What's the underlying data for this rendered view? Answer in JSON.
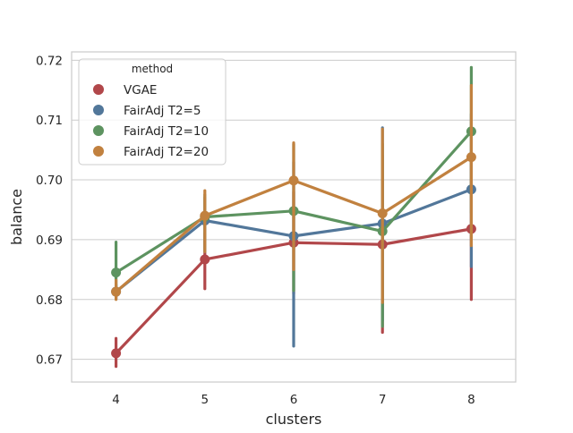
{
  "chart_data": {
    "type": "line",
    "xlabel": "clusters",
    "ylabel": "balance",
    "categories": [
      "4",
      "5",
      "6",
      "7",
      "8"
    ],
    "ylim": [
      0.6662,
      0.7214
    ],
    "yticks": [
      0.67,
      0.68,
      0.69,
      0.7,
      0.71,
      0.72
    ],
    "ytick_labels": [
      "0.67",
      "0.68",
      "0.69",
      "0.70",
      "0.71",
      "0.72"
    ],
    "grid": true,
    "legend": {
      "title": "method",
      "placement": "top-left"
    },
    "series": [
      {
        "name": "VGAE",
        "color": "#b1474a",
        "values": [
          0.671,
          0.6867,
          0.6895,
          0.6892,
          0.6918
        ],
        "ci_low": [
          0.6688,
          0.6818,
          0.681,
          0.6745,
          0.68
        ],
        "ci_high": [
          0.6735,
          0.691,
          0.698,
          0.704,
          0.7035
        ]
      },
      {
        "name": "FairAdj T2=5",
        "color": "#52779a",
        "values": [
          0.6813,
          0.6932,
          0.6906,
          0.6927,
          0.6984
        ],
        "ci_low": [
          0.6802,
          0.688,
          0.6722,
          0.6765,
          0.6855
        ],
        "ci_high": [
          0.6825,
          0.697,
          0.703,
          0.7087,
          0.711
        ]
      },
      {
        "name": "FairAdj T2=10",
        "color": "#5d9360",
        "values": [
          0.6845,
          0.6938,
          0.6948,
          0.6914,
          0.7081
        ],
        "ci_low": [
          0.681,
          0.6885,
          0.6815,
          0.6755,
          0.6945
        ],
        "ci_high": [
          0.6896,
          0.6975,
          0.706,
          0.706,
          0.7188
        ]
      },
      {
        "name": "FairAdj T2=20",
        "color": "#c1813f",
        "values": [
          0.6813,
          0.694,
          0.6999,
          0.6944,
          0.7038
        ],
        "ci_low": [
          0.68,
          0.688,
          0.685,
          0.6795,
          0.689
        ],
        "ci_high": [
          0.6832,
          0.6982,
          0.7062,
          0.7085,
          0.7158
        ]
      }
    ]
  }
}
